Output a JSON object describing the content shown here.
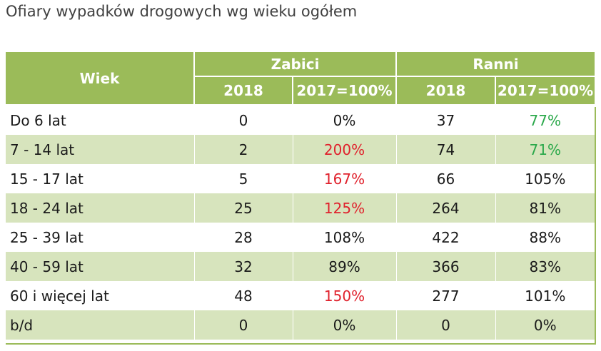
{
  "title": "Ofiary wypadków drogowych wg wieku ogółem",
  "header": {
    "age_label": "Wiek",
    "groups": [
      "Zabici",
      "Ranni"
    ],
    "subcolumns": [
      "2018",
      "2017=100%",
      "2018",
      "2017=100%"
    ]
  },
  "colors": {
    "header_green": "#9bbb59",
    "stripe": "#d7e4bd",
    "decrease_green": "#2aa84a",
    "increase_red": "#e0212c"
  },
  "rows": [
    {
      "label": "Do 6 lat",
      "killed": "0",
      "killed_pct": "0%",
      "killed_pct_color": "black",
      "injured": "37",
      "injured_pct": "77%",
      "injured_pct_color": "green"
    },
    {
      "label": "7 - 14 lat",
      "killed": "2",
      "killed_pct": "200%",
      "killed_pct_color": "red",
      "injured": "74",
      "injured_pct": "71%",
      "injured_pct_color": "green"
    },
    {
      "label": "15 - 17 lat",
      "killed": "5",
      "killed_pct": "167%",
      "killed_pct_color": "red",
      "injured": "66",
      "injured_pct": "105%",
      "injured_pct_color": "black"
    },
    {
      "label": "18 - 24 lat",
      "killed": "25",
      "killed_pct": "125%",
      "killed_pct_color": "red",
      "injured": "264",
      "injured_pct": "81%",
      "injured_pct_color": "black"
    },
    {
      "label": "25 - 39 lat",
      "killed": "28",
      "killed_pct": "108%",
      "killed_pct_color": "black",
      "injured": "422",
      "injured_pct": "88%",
      "injured_pct_color": "black"
    },
    {
      "label": "40 - 59 lat",
      "killed": "32",
      "killed_pct": "89%",
      "killed_pct_color": "black",
      "injured": "366",
      "injured_pct": "83%",
      "injured_pct_color": "black"
    },
    {
      "label": "60 i więcej lat",
      "killed": "48",
      "killed_pct": "150%",
      "killed_pct_color": "red",
      "injured": "277",
      "injured_pct": "101%",
      "injured_pct_color": "black"
    },
    {
      "label": "b/d",
      "killed": "0",
      "killed_pct": "0%",
      "killed_pct_color": "black",
      "injured": "0",
      "injured_pct": "0%",
      "injured_pct_color": "black"
    }
  ]
}
